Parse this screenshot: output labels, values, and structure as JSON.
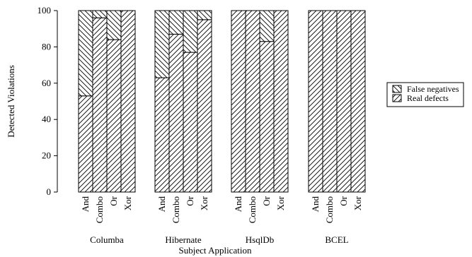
{
  "chart_data": {
    "type": "bar",
    "stacked": true,
    "title": "",
    "xlabel": "Subject Application",
    "ylabel": "Detected Violations",
    "ylim": [
      0,
      100
    ],
    "yticks": [
      0,
      20,
      40,
      60,
      80,
      100
    ],
    "grid": false,
    "legend_position": "right",
    "groups": [
      "Columba",
      "Hibernate",
      "HsqlDb",
      "BCEL"
    ],
    "categories": [
      "And",
      "Combo",
      "Or",
      "Xor"
    ],
    "series": [
      {
        "name": "Real defects",
        "pattern": "diagonal-forward",
        "values": [
          [
            53,
            96,
            84,
            100
          ],
          [
            63,
            87,
            77,
            95
          ],
          [
            100,
            100,
            83,
            100
          ],
          [
            100,
            100,
            100,
            100
          ]
        ]
      },
      {
        "name": "False negatives",
        "pattern": "diagonal-backward",
        "values": [
          [
            47,
            4,
            16,
            0
          ],
          [
            37,
            13,
            23,
            5
          ],
          [
            0,
            0,
            17,
            0
          ],
          [
            0,
            0,
            0,
            0
          ]
        ]
      }
    ],
    "legend": [
      "False negatives",
      "Real defects"
    ]
  }
}
